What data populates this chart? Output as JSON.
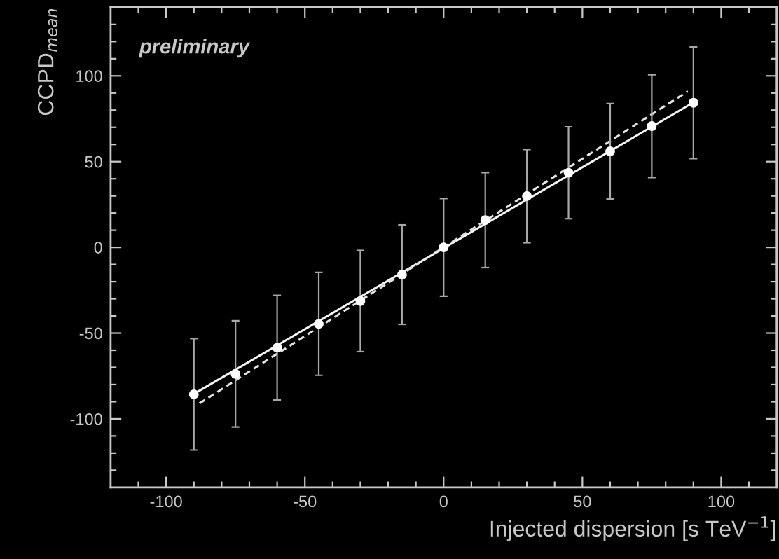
{
  "chart_data": {
    "type": "scatter",
    "xlabel": "Injected dispersion [s TeV$^{−1}$]",
    "ylabel": "CCPD$_{mean}$",
    "annotations": [
      "preliminary"
    ],
    "xlim": [
      -120,
      120
    ],
    "ylim": [
      -140,
      140
    ],
    "xticks": [
      {
        "value": -110,
        "label": null
      },
      -100,
      {
        "value": -90,
        "label": null
      },
      {
        "value": -80,
        "label": null
      },
      {
        "value": -70,
        "label": null
      },
      {
        "value": -60,
        "label": null
      },
      -50,
      {
        "value": -40,
        "label": null
      },
      {
        "value": -30,
        "label": null
      },
      {
        "value": -20,
        "label": null
      },
      {
        "value": -10,
        "label": null
      },
      0,
      {
        "value": 10,
        "label": null
      },
      {
        "value": 20,
        "label": null
      },
      {
        "value": 30,
        "label": null
      },
      {
        "value": 40,
        "label": null
      },
      50,
      {
        "value": 60,
        "label": null
      },
      {
        "value": 70,
        "label": null
      },
      {
        "value": 80,
        "label": null
      },
      {
        "value": 90,
        "label": null
      },
      100,
      {
        "value": 110,
        "label": null
      }
    ],
    "yticks": [
      {
        "value": -130,
        "label": null
      },
      {
        "value": -120,
        "label": null
      },
      {
        "value": -110,
        "label": null
      },
      -100,
      {
        "value": -90,
        "label": null
      },
      {
        "value": -80,
        "label": null
      },
      {
        "value": -70,
        "label": null
      },
      {
        "value": -60,
        "label": null
      },
      -50,
      {
        "value": -40,
        "label": null
      },
      {
        "value": -30,
        "label": null
      },
      {
        "value": -20,
        "label": null
      },
      {
        "value": -10,
        "label": null
      },
      0,
      {
        "value": 10,
        "label": null
      },
      {
        "value": 20,
        "label": null
      },
      {
        "value": 30,
        "label": null
      },
      {
        "value": 40,
        "label": null
      },
      50,
      {
        "value": 60,
        "label": null
      },
      {
        "value": 70,
        "label": null
      },
      {
        "value": 80,
        "label": null
      },
      {
        "value": 90,
        "label": null
      },
      100,
      {
        "value": 110,
        "label": null
      },
      {
        "value": 120,
        "label": null
      },
      {
        "value": 130,
        "label": null
      }
    ],
    "grid": false,
    "legend": false,
    "series": [
      {
        "type": "line",
        "color": "#f4f4f4",
        "line_style": "solid",
        "x": [
          -90,
          90
        ],
        "values": [
          -85.5,
          84.5
        ]
      },
      {
        "type": "line",
        "color": "#e4e4e4",
        "line_style": "dashed",
        "x": [
          -88,
          88
        ],
        "values": [
          -91,
          91
        ]
      },
      {
        "type": "scatter",
        "marker": "circle",
        "color": "#ffffff",
        "x": [
          -90,
          -75,
          -60,
          -45,
          -30,
          -15,
          0,
          15,
          30,
          45,
          60,
          75,
          90
        ],
        "values": [
          -85.7,
          -73.8,
          -58.5,
          -44.6,
          -31.3,
          -15.9,
          0,
          15.9,
          29.9,
          43.5,
          56,
          70.7,
          84.3
        ],
        "errors": [
          32.5,
          31,
          30.5,
          30,
          29.5,
          29,
          28.5,
          27.7,
          27.2,
          26.8,
          27.8,
          30,
          32.5
        ]
      }
    ]
  }
}
